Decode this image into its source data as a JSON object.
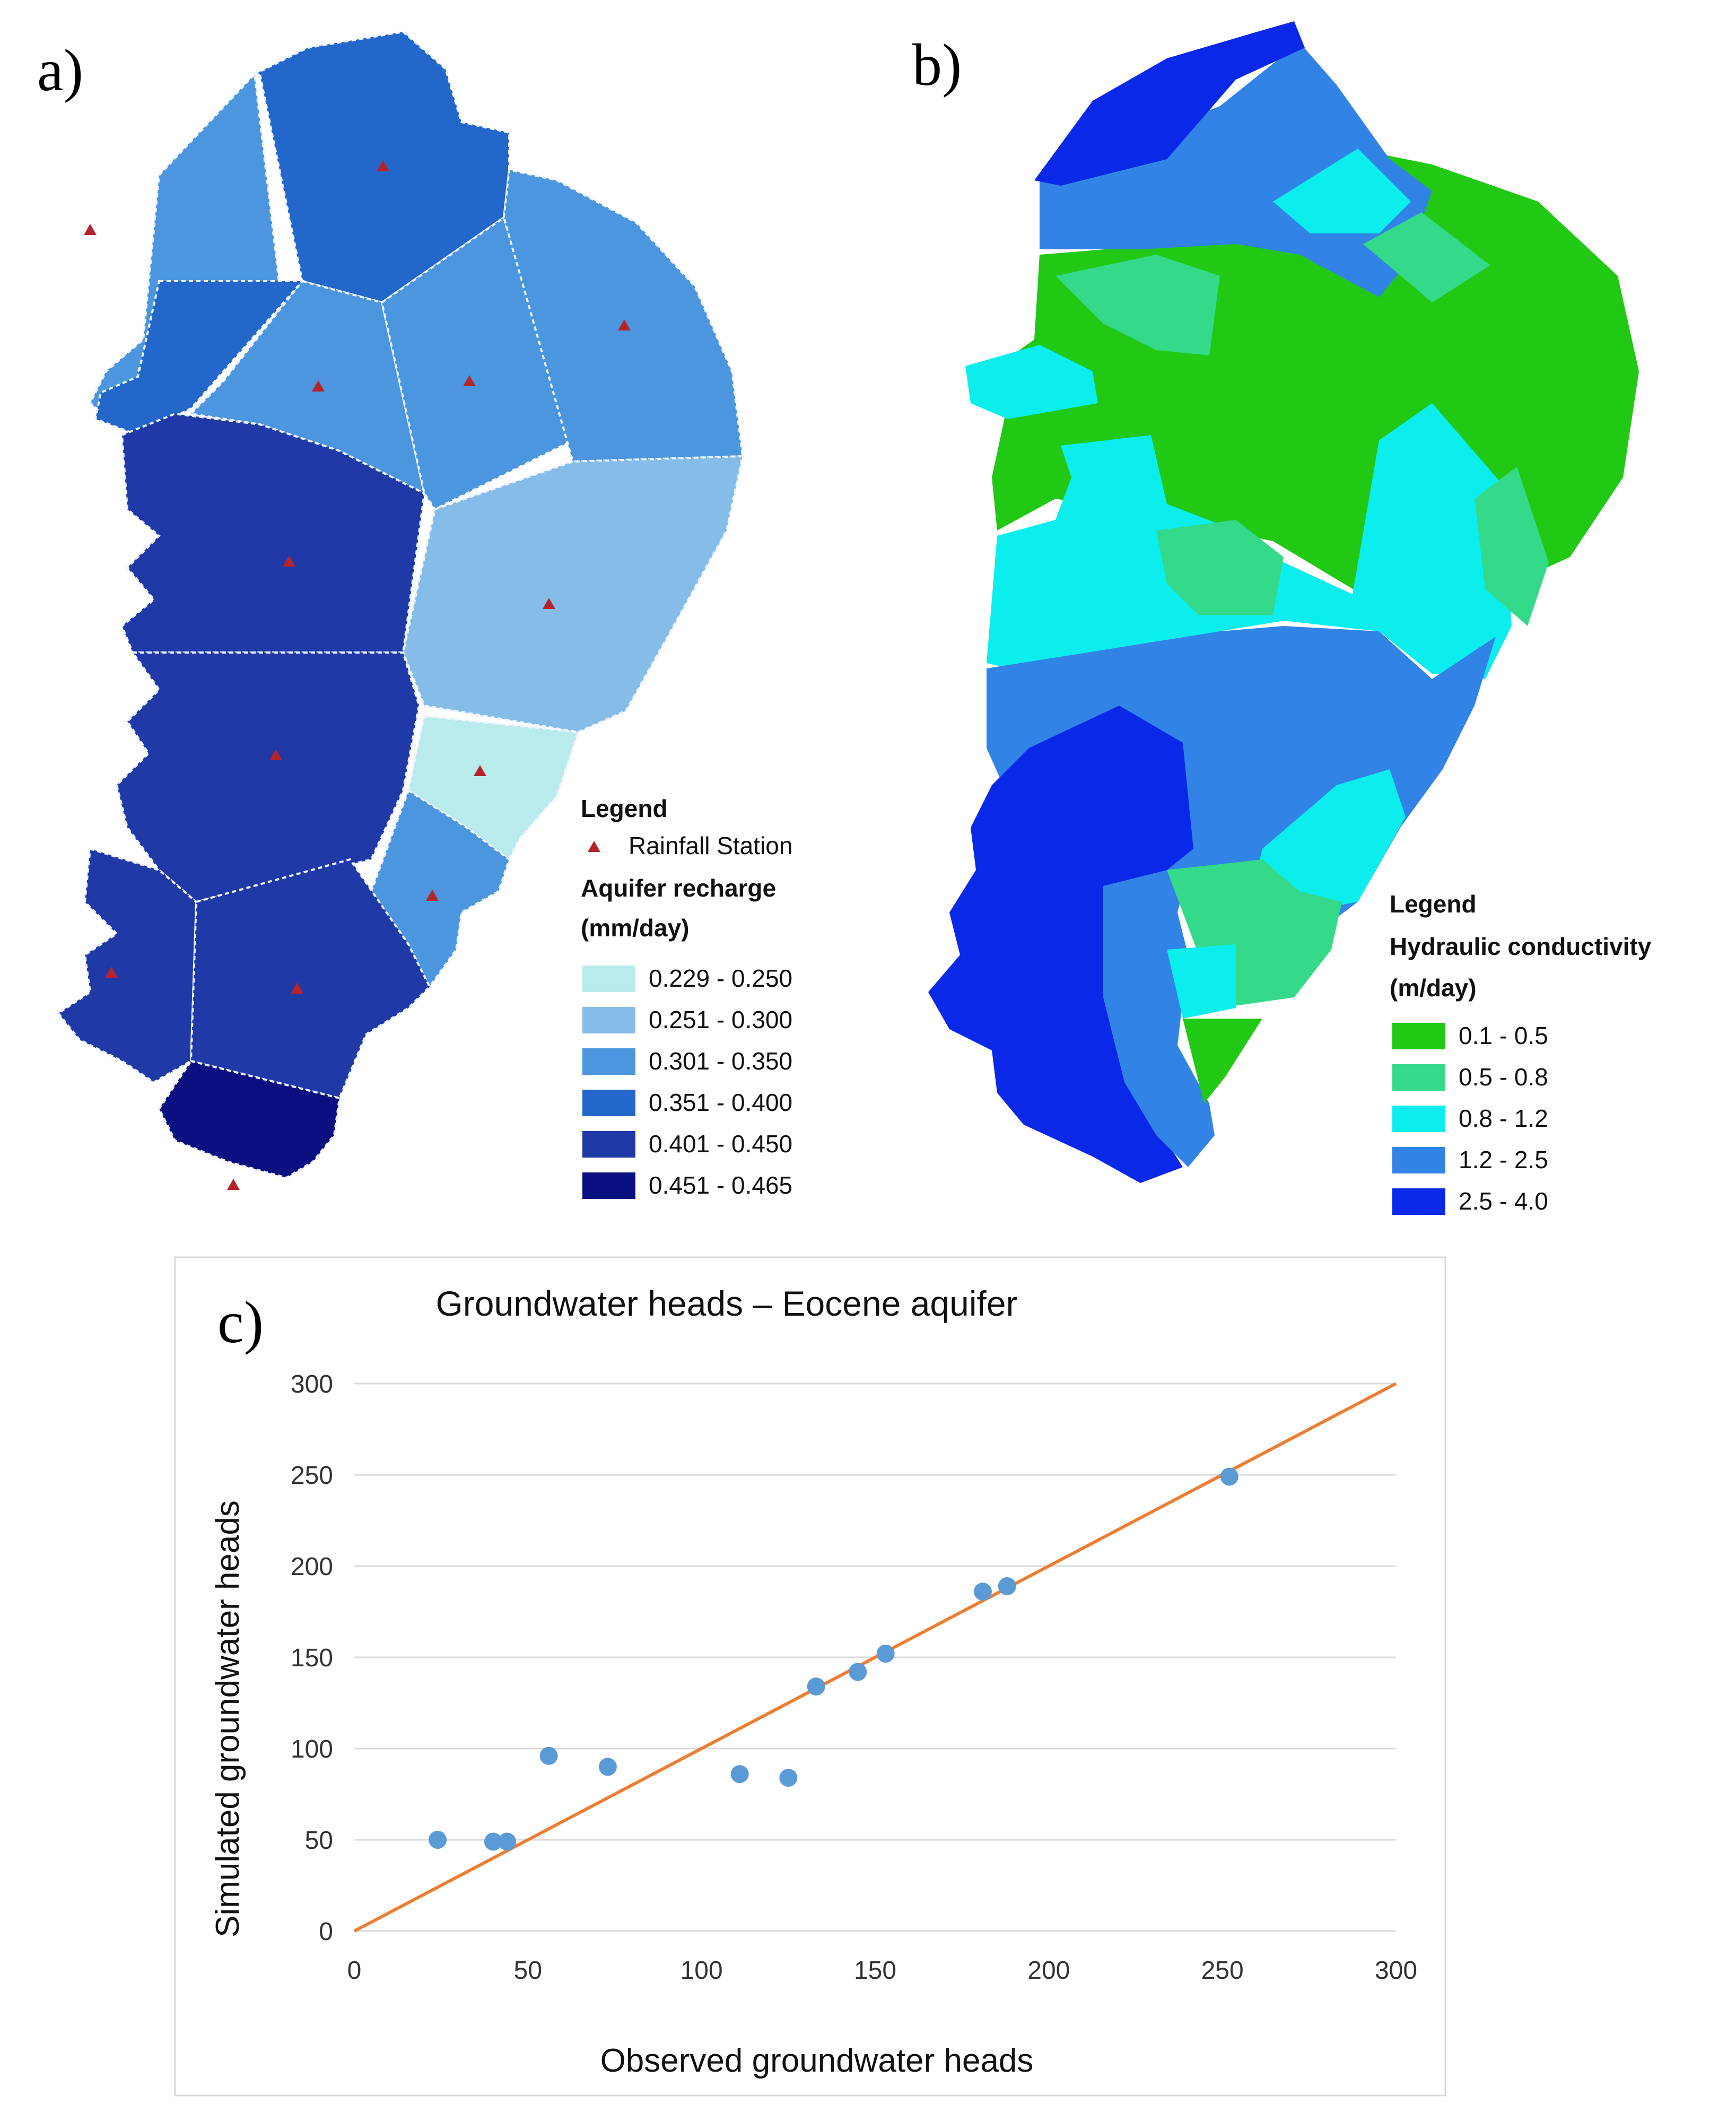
{
  "panels": {
    "a": {
      "letter": "a)",
      "legend": {
        "title": "Legend",
        "station_label": "Rainfall Station",
        "heading_line1": "Aquifer recharge",
        "heading_line2": "(mm/day)",
        "classes": [
          {
            "label": "0.229 - 0.250",
            "color": "#b9eaec"
          },
          {
            "label": "0.251 - 0.300",
            "color": "#85bde8"
          },
          {
            "label": "0.301 - 0.350",
            "color": "#4b96de"
          },
          {
            "label": "0.351 - 0.400",
            "color": "#2267c9"
          },
          {
            "label": "0.401 - 0.450",
            "color": "#1f3aa6"
          },
          {
            "label": "0.451 - 0.465",
            "color": "#0b0f80"
          }
        ]
      },
      "station_icon": "triangle-icon",
      "station_color": "#b5242a"
    },
    "b": {
      "letter": "b)",
      "legend": {
        "title": "Legend",
        "heading_line1": "Hydraulic conductivity",
        "heading_line2": "(m/day)",
        "classes": [
          {
            "label": "0.1 - 0.5",
            "color": "#21c814"
          },
          {
            "label": "0.5 - 0.8",
            "color": "#35d98a"
          },
          {
            "label": "0.8 - 1.2",
            "color": "#0ceeee"
          },
          {
            "label": "1.2 - 2.5",
            "color": "#3283e6"
          },
          {
            "label": "2.5 - 4.0",
            "color": "#0a28e8"
          }
        ]
      }
    },
    "c": {
      "letter": "c)"
    }
  },
  "chart_data": {
    "type": "scatter",
    "title": "Groundwater heads – Eocene aquifer",
    "xlabel": "Observed groundwater heads",
    "ylabel": "Simulated groundwater heads",
    "xlim": [
      0,
      300
    ],
    "ylim": [
      0,
      300
    ],
    "xticks": [
      0,
      50,
      100,
      150,
      200,
      250,
      300
    ],
    "yticks": [
      0,
      50,
      100,
      150,
      200,
      250,
      300
    ],
    "grid": true,
    "points": [
      {
        "x": 24,
        "y": 50
      },
      {
        "x": 40,
        "y": 49
      },
      {
        "x": 44,
        "y": 49
      },
      {
        "x": 56,
        "y": 96
      },
      {
        "x": 73,
        "y": 90
      },
      {
        "x": 111,
        "y": 86
      },
      {
        "x": 125,
        "y": 84
      },
      {
        "x": 133,
        "y": 134
      },
      {
        "x": 145,
        "y": 142
      },
      {
        "x": 153,
        "y": 152
      },
      {
        "x": 181,
        "y": 186
      },
      {
        "x": 188,
        "y": 189
      },
      {
        "x": 252,
        "y": 249
      }
    ],
    "line": {
      "x": [
        0,
        300
      ],
      "y": [
        0,
        300
      ]
    },
    "point_color": "#5b9bd5",
    "line_color": "#ed7d31"
  }
}
